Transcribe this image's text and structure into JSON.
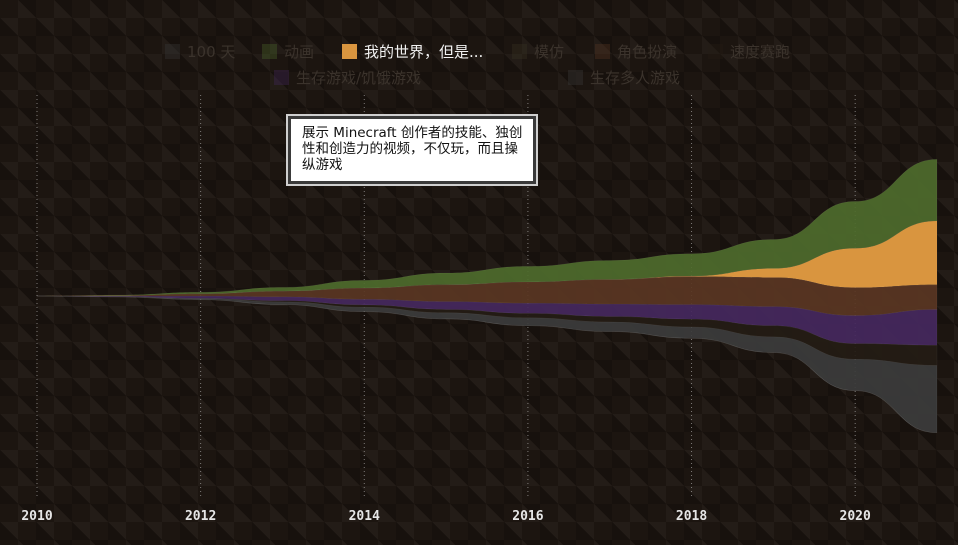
{
  "chart_data": {
    "type": "area",
    "stacking": "streamgraph",
    "x": [
      2010,
      2011,
      2012,
      2013,
      2014,
      2015,
      2016,
      2017,
      2018,
      2019,
      2020,
      2021
    ],
    "xlim": [
      2010,
      2021
    ],
    "x_ticks": [
      "2010",
      "2012",
      "2014",
      "2016",
      "2018",
      "2020"
    ],
    "grid": "vertical dotted",
    "legend_position": "top",
    "series": [
      {
        "name": "100 天",
        "visible": false,
        "color": "#3a3a3a",
        "values": [
          0,
          0,
          0,
          0,
          0,
          0,
          0,
          0,
          0,
          0,
          0,
          0
        ]
      },
      {
        "name": "动画",
        "visible": false,
        "color": "#4e6b2c",
        "values": [
          0,
          0.5,
          1.5,
          3.5,
          7,
          10.5,
          14,
          17,
          20,
          26,
          42,
          55
        ]
      },
      {
        "name": "我的世界，但是...",
        "visible": true,
        "color": "#d9953f",
        "values": [
          0,
          0,
          0,
          0,
          0,
          0,
          0,
          0,
          0.5,
          8,
          35,
          57
        ]
      },
      {
        "name": "模仿",
        "visible": false,
        "color": "#3a3521",
        "values": [
          0,
          0,
          0,
          0,
          0,
          0,
          0,
          0,
          0,
          0,
          0,
          0
        ]
      },
      {
        "name": "角色扮演",
        "visible": false,
        "color": "#5a3623",
        "values": [
          0,
          0.5,
          2,
          5,
          10,
          15,
          19,
          22,
          25,
          26,
          25,
          22
        ]
      },
      {
        "name": "速度赛跑",
        "visible": false,
        "color": "#241c15",
        "values": [
          0,
          0,
          0,
          1,
          2,
          3,
          4,
          5,
          7,
          10,
          14,
          18
        ]
      },
      {
        "name": "生存游戏/饥饿游戏",
        "visible": false,
        "color": "#45285e",
        "values": [
          0,
          0.5,
          2,
          3.5,
          5,
          7,
          9,
          11,
          13,
          17,
          25,
          32
        ]
      },
      {
        "name": "生存多人游戏",
        "visible": false,
        "color": "#3c3c3c",
        "values": [
          0,
          0.3,
          1.2,
          2.5,
          4,
          5.5,
          7,
          8.5,
          10,
          14,
          28,
          60
        ]
      }
    ]
  },
  "tooltip": {
    "text": "展示 Minecraft 创作者的技能、独创性和创造力的视频，不仅玩，而且操纵游戏"
  },
  "colors": {
    "background": "#1c1510",
    "tick_text": "#e6e6e6",
    "legend_active": "#f2f2f2",
    "legend_dim": "#3b332c"
  }
}
